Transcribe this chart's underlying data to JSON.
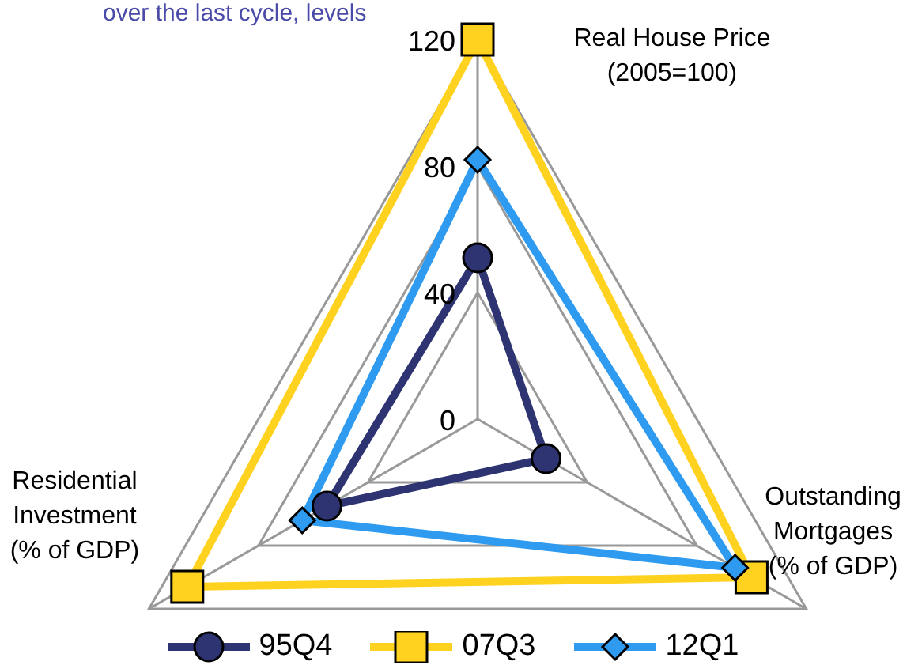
{
  "chart_data": {
    "type": "radar",
    "title": "over the last cycle, levels",
    "categories": [
      "Real House Price\n(2005=100)",
      "Outstanding\nMortgages\n(% of GDP)",
      "Residential\nInvestment\n(% of GDP)"
    ],
    "series": [
      {
        "name": "95Q4",
        "color": "#2e3472",
        "values": [
          51,
          25,
          55
        ],
        "marker": "circle"
      },
      {
        "name": "07Q3",
        "color": "#ffd21f",
        "values": [
          120,
          100,
          106
        ],
        "marker": "square"
      },
      {
        "name": "12Q1",
        "color": "#2e9bf0",
        "values": [
          82,
          94,
          64
        ],
        "marker": "diamond"
      }
    ],
    "ylim": [
      0,
      120
    ],
    "yticks": [
      0,
      40,
      80,
      120
    ],
    "grid": true,
    "legend": "bottom"
  }
}
